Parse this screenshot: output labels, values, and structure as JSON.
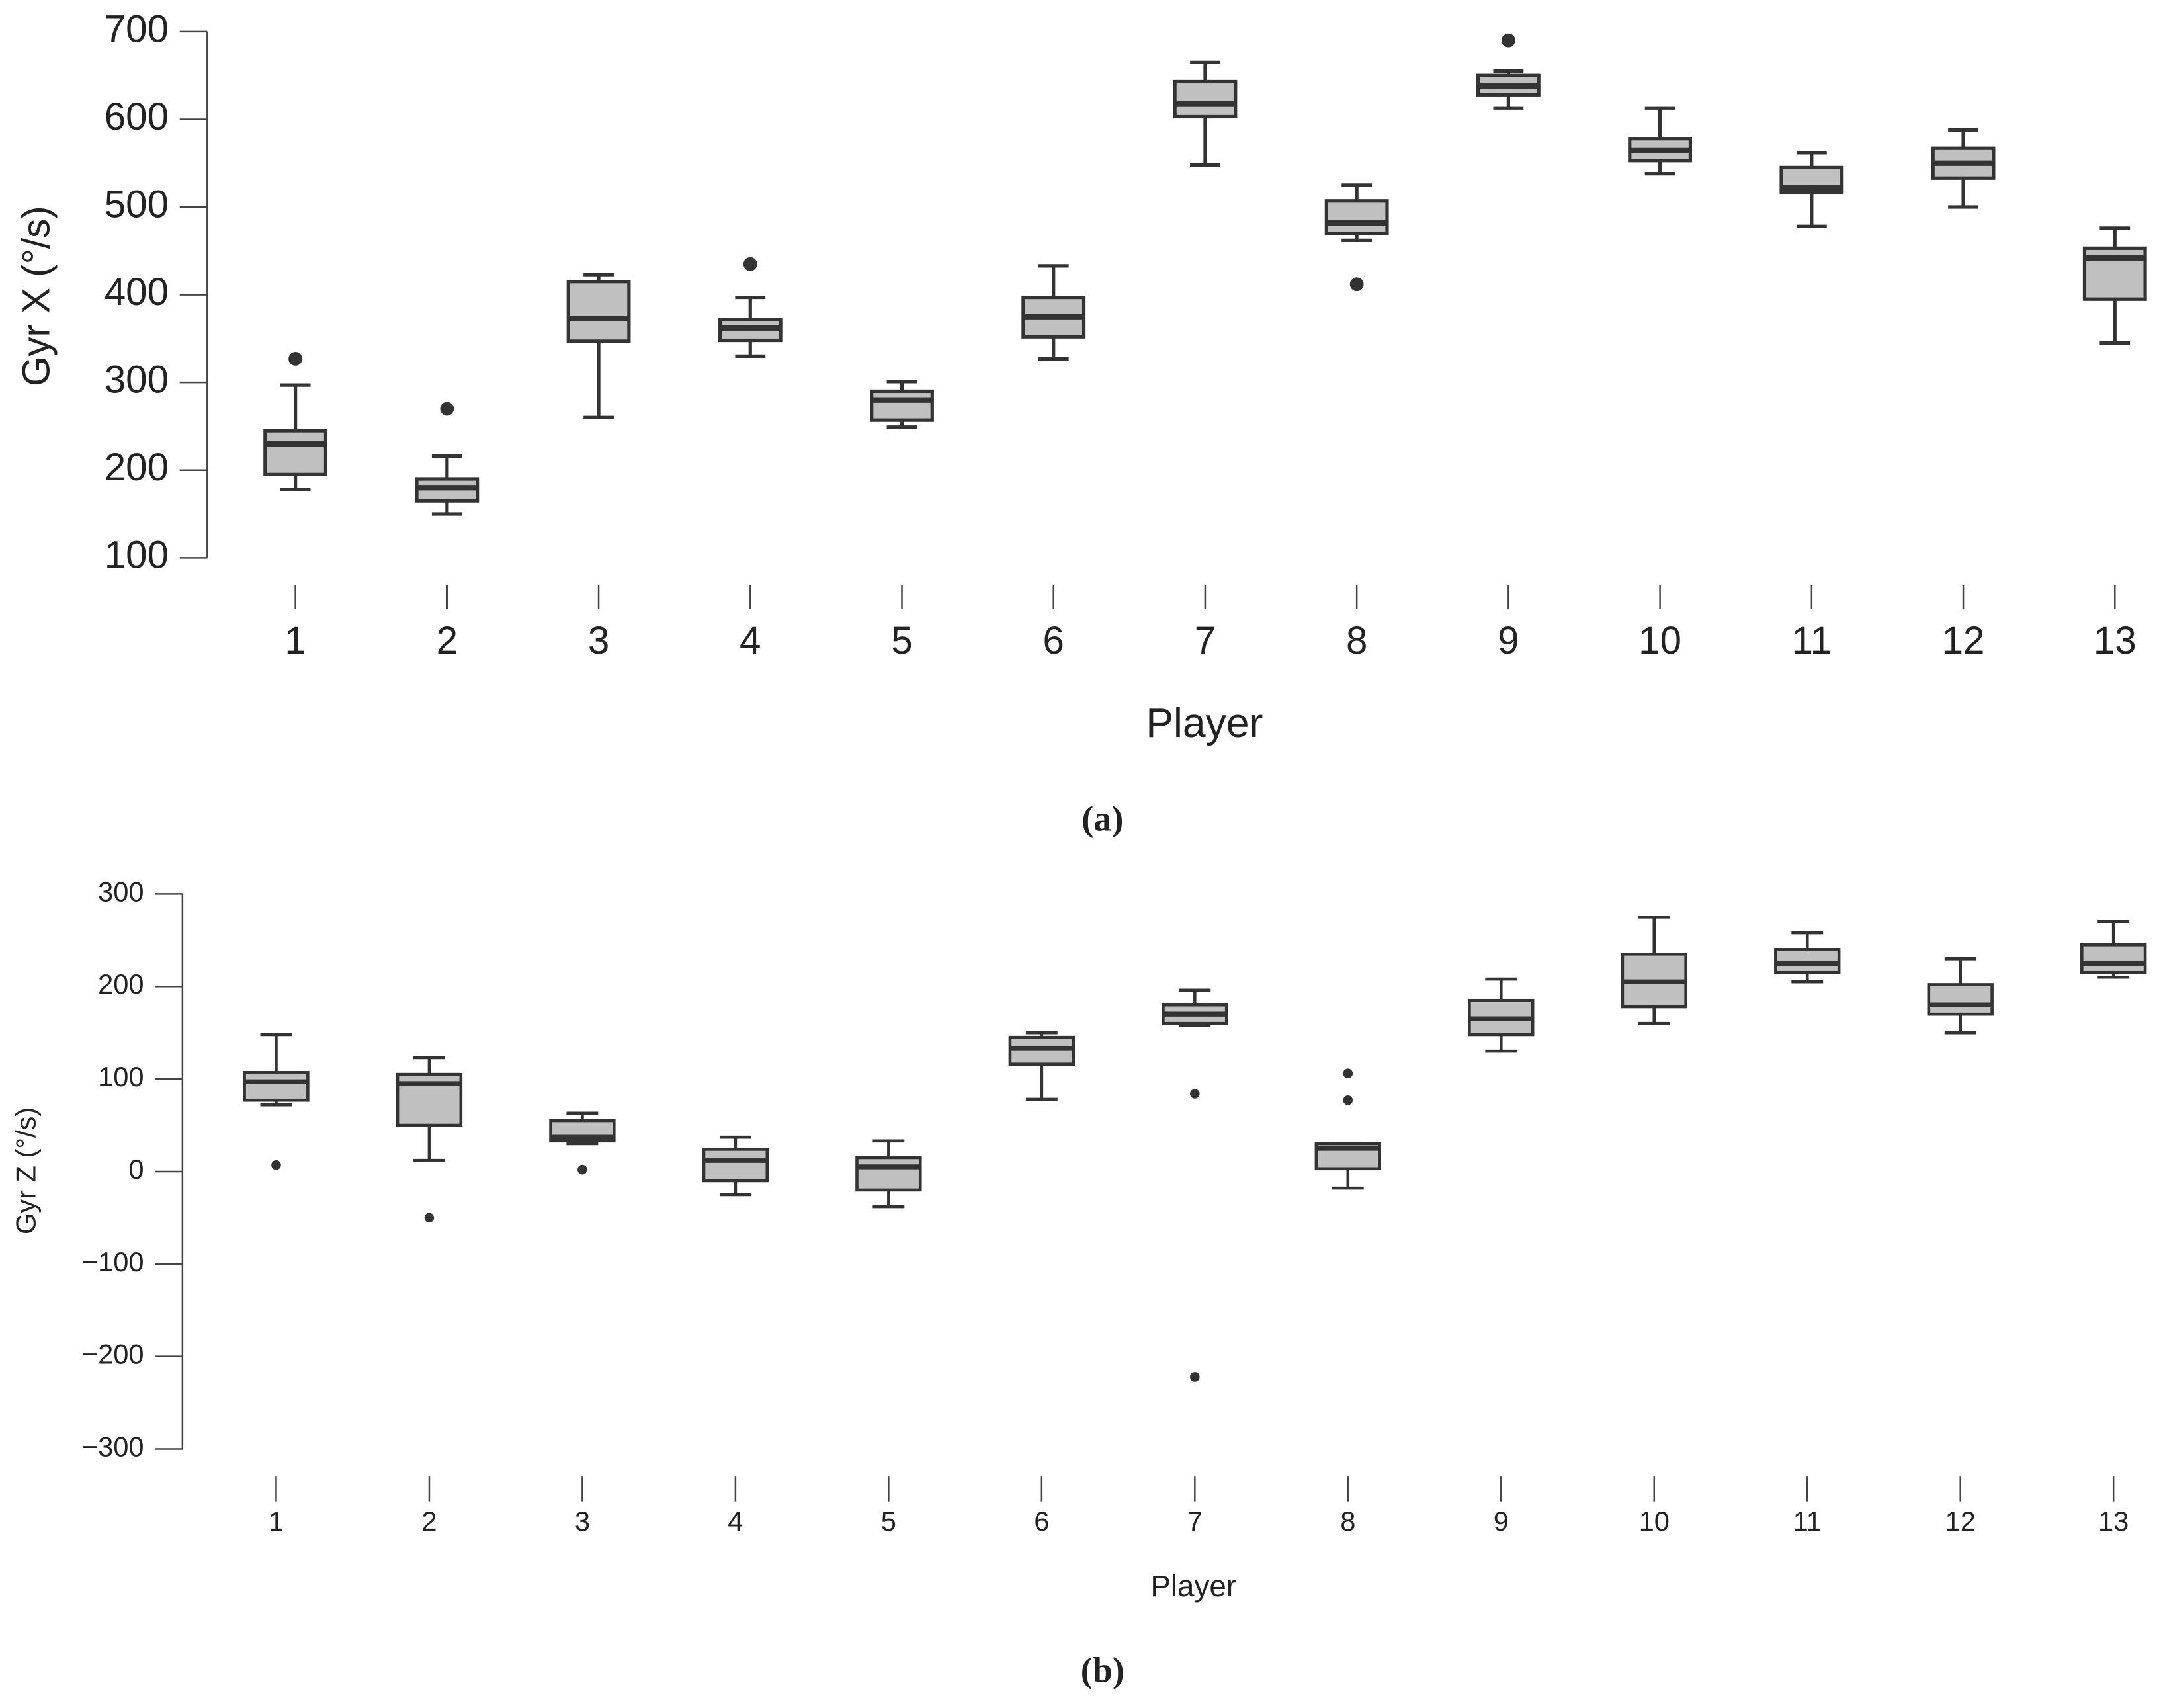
{
  "chart_data": [
    {
      "type": "box",
      "caption": "(a)",
      "ylabel": "Gyr X (°/s)",
      "xlabel": "Player",
      "categories": [
        "1",
        "2",
        "3",
        "4",
        "5",
        "6",
        "7",
        "8",
        "9",
        "10",
        "11",
        "12",
        "13"
      ],
      "color": "#c0c0c0",
      "edge_color": "#333333",
      "ylim": [
        100,
        700
      ],
      "yticks": [
        100,
        200,
        300,
        400,
        500,
        600,
        700
      ],
      "boxes": [
        {
          "whisker_low": 178,
          "q1": 195,
          "median": 230,
          "q3": 245,
          "whisker_high": 297,
          "outliers": [
            327
          ]
        },
        {
          "whisker_low": 150,
          "q1": 165,
          "median": 180,
          "q3": 190,
          "whisker_high": 216,
          "outliers": [
            270
          ]
        },
        {
          "whisker_low": 260,
          "q1": 347,
          "median": 373,
          "q3": 415,
          "whisker_high": 423,
          "outliers": []
        },
        {
          "whisker_low": 330,
          "q1": 348,
          "median": 362,
          "q3": 372,
          "whisker_high": 397,
          "outliers": [
            435
          ]
        },
        {
          "whisker_low": 249,
          "q1": 257,
          "median": 280,
          "q3": 290,
          "whisker_high": 301,
          "outliers": []
        },
        {
          "whisker_low": 327,
          "q1": 352,
          "median": 375,
          "q3": 397,
          "whisker_high": 433,
          "outliers": []
        },
        {
          "whisker_low": 548,
          "q1": 603,
          "median": 618,
          "q3": 643,
          "whisker_high": 665,
          "outliers": []
        },
        {
          "whisker_low": 462,
          "q1": 470,
          "median": 482,
          "q3": 507,
          "whisker_high": 525,
          "outliers": [
            412
          ]
        },
        {
          "whisker_low": 613,
          "q1": 628,
          "median": 638,
          "q3": 650,
          "whisker_high": 655,
          "outliers": [
            690
          ]
        },
        {
          "whisker_low": 538,
          "q1": 553,
          "median": 565,
          "q3": 578,
          "whisker_high": 613,
          "outliers": []
        },
        {
          "whisker_low": 478,
          "q1": 517,
          "median": 522,
          "q3": 545,
          "whisker_high": 562,
          "outliers": []
        },
        {
          "whisker_low": 500,
          "q1": 533,
          "median": 550,
          "q3": 567,
          "whisker_high": 588,
          "outliers": []
        },
        {
          "whisker_low": 345,
          "q1": 395,
          "median": 442,
          "q3": 453,
          "whisker_high": 476,
          "outliers": []
        }
      ]
    },
    {
      "type": "box",
      "caption": "(b)",
      "ylabel": "Gyr Z (°/s)",
      "xlabel": "Player",
      "categories": [
        "1",
        "2",
        "3",
        "4",
        "5",
        "6",
        "7",
        "8",
        "9",
        "10",
        "11",
        "12",
        "13"
      ],
      "color": "#c0c0c0",
      "edge_color": "#333333",
      "ylim": [
        -300,
        300
      ],
      "yticks": [
        {
          "value": -300,
          "label": "−300"
        },
        {
          "value": -200,
          "label": "−200"
        },
        {
          "value": -100,
          "label": "−100"
        },
        0,
        100,
        200,
        300
      ],
      "boxes": [
        {
          "whisker_low": 72,
          "q1": 77,
          "median": 97,
          "q3": 107,
          "whisker_high": 148,
          "outliers": [
            7
          ]
        },
        {
          "whisker_low": 12,
          "q1": 50,
          "median": 95,
          "q3": 105,
          "whisker_high": 123,
          "outliers": [
            -50
          ]
        },
        {
          "whisker_low": 30,
          "q1": 33,
          "median": 37,
          "q3": 55,
          "whisker_high": 63,
          "outliers": [
            2
          ]
        },
        {
          "whisker_low": -25,
          "q1": -10,
          "median": 12,
          "q3": 24,
          "whisker_high": 37,
          "outliers": []
        },
        {
          "whisker_low": -38,
          "q1": -20,
          "median": 5,
          "q3": 15,
          "whisker_high": 33,
          "outliers": []
        },
        {
          "whisker_low": 78,
          "q1": 116,
          "median": 133,
          "q3": 145,
          "whisker_high": 150,
          "outliers": []
        },
        {
          "whisker_low": 158,
          "q1": 160,
          "median": 170,
          "q3": 180,
          "whisker_high": 196,
          "outliers": [
            84,
            -222
          ]
        },
        {
          "whisker_low": -18,
          "q1": 3,
          "median": 25,
          "q3": 30,
          "whisker_high": 30,
          "outliers": [
            77,
            106
          ]
        },
        {
          "whisker_low": 130,
          "q1": 148,
          "median": 165,
          "q3": 185,
          "whisker_high": 208,
          "outliers": []
        },
        {
          "whisker_low": 160,
          "q1": 178,
          "median": 205,
          "q3": 235,
          "whisker_high": 275,
          "outliers": []
        },
        {
          "whisker_low": 205,
          "q1": 215,
          "median": 225,
          "q3": 240,
          "whisker_high": 258,
          "outliers": []
        },
        {
          "whisker_low": 150,
          "q1": 170,
          "median": 180,
          "q3": 202,
          "whisker_high": 230,
          "outliers": []
        },
        {
          "whisker_low": 210,
          "q1": 215,
          "median": 225,
          "q3": 245,
          "whisker_high": 270,
          "outliers": []
        }
      ]
    }
  ]
}
